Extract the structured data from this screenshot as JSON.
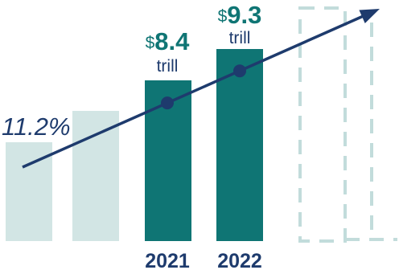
{
  "chart_data": {
    "type": "bar",
    "bars": [
      {
        "label": "",
        "style": "faded"
      },
      {
        "label": "",
        "style": "faded"
      },
      {
        "label": "2021",
        "style": "solid",
        "value": 8.4,
        "currency": "$",
        "unit": "trill"
      },
      {
        "label": "2022",
        "style": "solid",
        "value": 9.3,
        "currency": "$",
        "unit": "trill"
      },
      {
        "label": "",
        "style": "dashed"
      }
    ],
    "growth_rate": "11.2%",
    "trend_line": {
      "shown": true,
      "arrow": true,
      "markers_on": [
        "2021",
        "2022"
      ]
    },
    "colors": {
      "solid": "#0f7574",
      "faded": "#d2e5e4",
      "dashed": "#c2dcdb",
      "trend": "#1e3b6d",
      "value_text": "#0f7574",
      "year_text": "#1e3b6d",
      "rate_text": "#1e3b6d"
    }
  }
}
